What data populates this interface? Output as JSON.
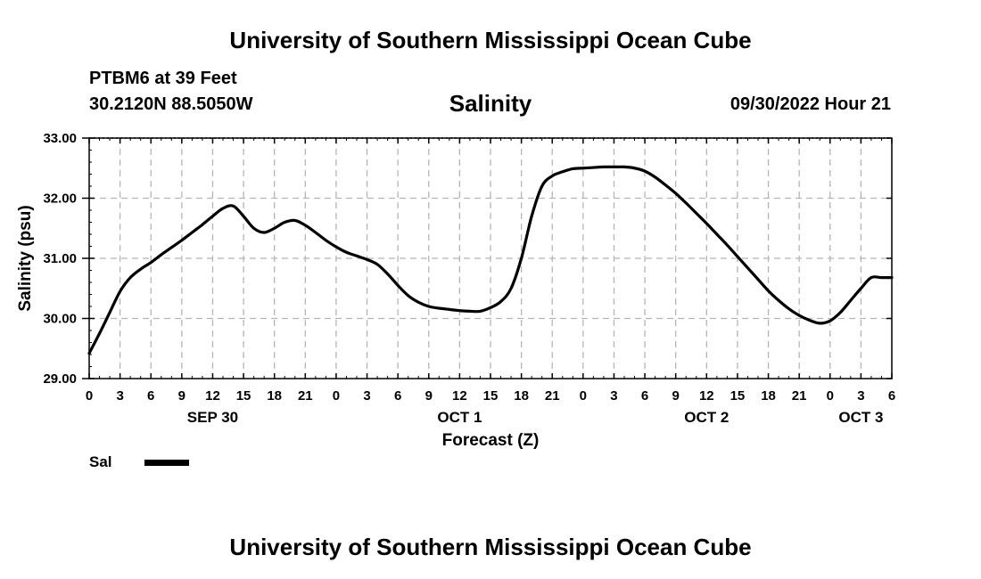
{
  "header": {
    "title": "University of Southern Mississippi Ocean Cube",
    "station": "PTBM6 at 39 Feet",
    "coords": "30.2120N  88.5050W",
    "variable": "Salinity",
    "stamp": "09/30/2022 Hour 21"
  },
  "footer": {
    "title": "University of Southern Mississippi Ocean Cube"
  },
  "legend": {
    "label": "Sal"
  },
  "chart_data": {
    "type": "line",
    "xlabel": "Forecast (Z)",
    "ylabel": "Salinity (psu)",
    "ylim": [
      29.0,
      33.0
    ],
    "xlim_hours": [
      0,
      78
    ],
    "x_unit": "hours",
    "grid": true,
    "legend_position": "bottom-left",
    "y_ticks": [
      "29.00",
      "30.00",
      "31.00",
      "32.00",
      "33.00"
    ],
    "x_tick_labels": [
      "0",
      "3",
      "6",
      "9",
      "12",
      "15",
      "18",
      "21",
      "0",
      "3",
      "6",
      "9",
      "12",
      "15",
      "18",
      "21",
      "0",
      "3",
      "6",
      "9",
      "12",
      "15",
      "18",
      "21",
      "0",
      "3",
      "6"
    ],
    "day_labels": [
      {
        "label": "SEP 30",
        "hour": 12
      },
      {
        "label": "OCT 1",
        "hour": 36
      },
      {
        "label": "OCT 2",
        "hour": 60
      },
      {
        "label": "OCT 3",
        "hour": 75
      }
    ],
    "series": [
      {
        "name": "Sal",
        "color": "#000000",
        "x": [
          0,
          1,
          2,
          3,
          4,
          5,
          6,
          7,
          8,
          9,
          10,
          11,
          12,
          13,
          14,
          15,
          16,
          17,
          18,
          19,
          20,
          21,
          22,
          23,
          24,
          25,
          26,
          27,
          28,
          29,
          30,
          31,
          32,
          33,
          34,
          35,
          36,
          37,
          38,
          39,
          40,
          41,
          42,
          43,
          44,
          45,
          46,
          47,
          48,
          49,
          50,
          51,
          52,
          53,
          54,
          55,
          56,
          57,
          58,
          59,
          60,
          61,
          62,
          63,
          64,
          65,
          66,
          67,
          68,
          69,
          70,
          71,
          72,
          73,
          74,
          75,
          76,
          77,
          78
        ],
        "y": [
          29.42,
          29.75,
          30.1,
          30.45,
          30.68,
          30.82,
          30.93,
          31.06,
          31.18,
          31.3,
          31.43,
          31.56,
          31.7,
          31.83,
          31.87,
          31.7,
          31.5,
          31.43,
          31.5,
          31.6,
          31.63,
          31.55,
          31.43,
          31.3,
          31.19,
          31.1,
          31.04,
          30.98,
          30.9,
          30.74,
          30.55,
          30.38,
          30.27,
          30.2,
          30.17,
          30.15,
          30.13,
          30.12,
          30.12,
          30.18,
          30.28,
          30.5,
          31.0,
          31.7,
          32.2,
          32.37,
          32.44,
          32.49,
          32.5,
          32.51,
          32.52,
          32.52,
          32.52,
          32.5,
          32.45,
          32.35,
          32.22,
          32.08,
          31.92,
          31.75,
          31.58,
          31.4,
          31.22,
          31.03,
          30.84,
          30.65,
          30.46,
          30.3,
          30.16,
          30.05,
          29.97,
          29.92,
          29.96,
          30.1,
          30.3,
          30.5,
          30.68,
          30.68,
          30.68
        ]
      }
    ]
  }
}
